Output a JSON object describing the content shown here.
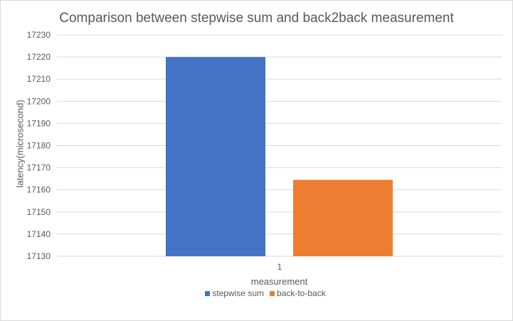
{
  "chart_data": {
    "type": "bar",
    "title": "Comparison between stepwise sum and back2back measurement",
    "xlabel": "measurement",
    "ylabel": "latency(microsecond)",
    "categories": [
      "1"
    ],
    "ylim": [
      17130,
      17230
    ],
    "yticks": [
      17130,
      17140,
      17150,
      17160,
      17170,
      17180,
      17190,
      17200,
      17210,
      17220,
      17230
    ],
    "grid": true,
    "legend_position": "bottom",
    "series": [
      {
        "name": "stepwise sum",
        "values": [
          17220
        ],
        "color": "#4472c4"
      },
      {
        "name": "back-to-back",
        "values": [
          17164.5
        ],
        "color": "#ed7d31"
      }
    ]
  }
}
